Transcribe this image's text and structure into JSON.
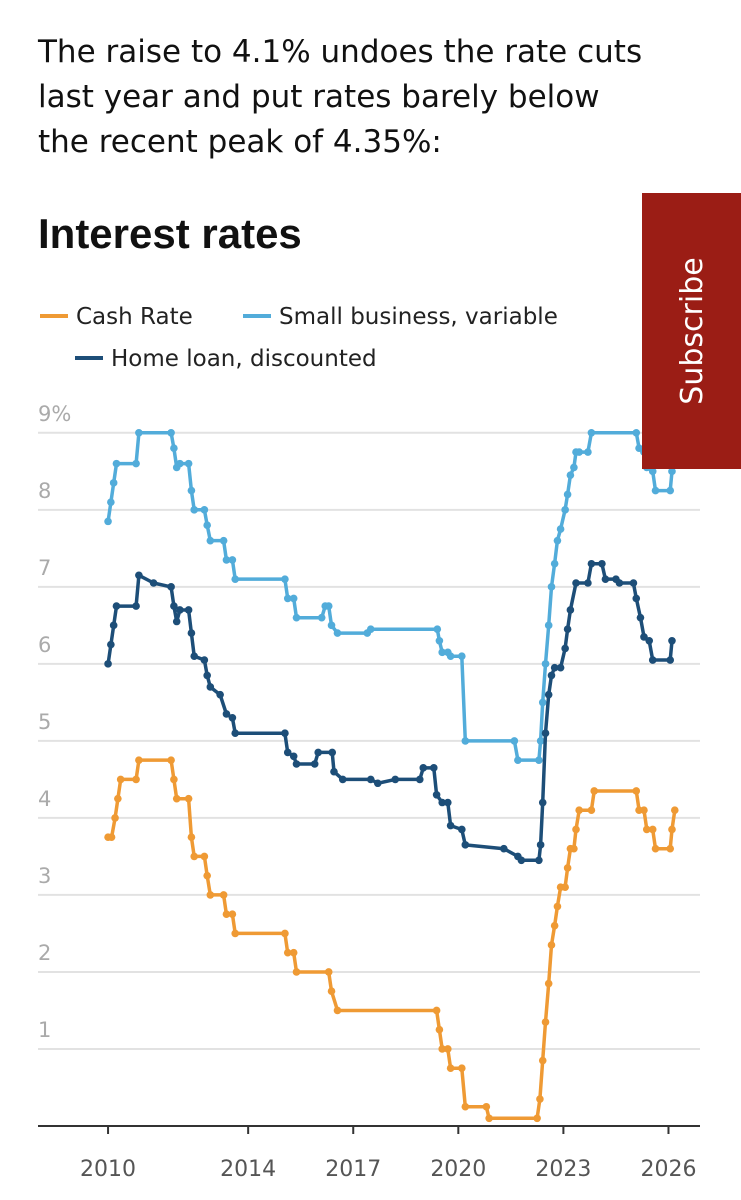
{
  "intro_lines": [
    "The raise to 4.1% undoes the rate cuts",
    "last year and put rates barely below",
    "the recent peak of 4.35%:"
  ],
  "overlay": {
    "button": "Subscribe"
  },
  "chart_data": {
    "type": "line",
    "title": "Interest rates",
    "xlim": [
      2008,
      2026.9
    ],
    "xticks": [
      2010,
      2014,
      2017,
      2020,
      2023,
      2026
    ],
    "ylim": [
      0,
      9.4
    ],
    "yticks": [
      1,
      2,
      3,
      4,
      5,
      6,
      7,
      8,
      {
        "value": 9,
        "label": "9%"
      }
    ],
    "grid": true,
    "series": [
      {
        "name": "Cash Rate",
        "color": "#ef9a34",
        "x": [
          2010.0,
          2010.1,
          2010.2,
          2010.28,
          2010.36,
          2010.8,
          2010.88,
          2011.8,
          2011.88,
          2011.96,
          2012.3,
          2012.38,
          2012.46,
          2012.75,
          2012.83,
          2012.92,
          2013.3,
          2013.38,
          2013.55,
          2013.63,
          2015.05,
          2015.13,
          2015.3,
          2015.38,
          2016.3,
          2016.38,
          2016.55,
          2019.38,
          2019.46,
          2019.54,
          2019.7,
          2019.78,
          2020.1,
          2020.2,
          2020.8,
          2020.88,
          2022.25,
          2022.33,
          2022.41,
          2022.49,
          2022.58,
          2022.66,
          2022.75,
          2022.83,
          2022.92,
          2023.05,
          2023.12,
          2023.2,
          2023.3,
          2023.36,
          2023.45,
          2023.8,
          2023.88,
          2025.08,
          2025.16,
          2025.3,
          2025.38,
          2025.55,
          2025.63,
          2026.05,
          2026.1,
          2026.18
        ],
        "values": [
          3.75,
          3.75,
          4.0,
          4.25,
          4.5,
          4.5,
          4.75,
          4.75,
          4.5,
          4.25,
          4.25,
          3.75,
          3.5,
          3.5,
          3.25,
          3.0,
          3.0,
          2.75,
          2.75,
          2.5,
          2.5,
          2.25,
          2.25,
          2.0,
          2.0,
          1.75,
          1.5,
          1.5,
          1.25,
          1.0,
          1.0,
          0.75,
          0.75,
          0.25,
          0.25,
          0.1,
          0.1,
          0.35,
          0.85,
          1.35,
          1.85,
          2.35,
          2.6,
          2.85,
          3.1,
          3.1,
          3.35,
          3.6,
          3.6,
          3.85,
          4.1,
          4.1,
          4.35,
          4.35,
          4.1,
          4.1,
          3.85,
          3.85,
          3.6,
          3.6,
          3.85,
          4.1
        ]
      },
      {
        "name": "Small business, variable",
        "color": "#52acda",
        "x": [
          2010.0,
          2010.08,
          2010.16,
          2010.24,
          2010.8,
          2010.88,
          2011.8,
          2011.88,
          2011.96,
          2012.05,
          2012.3,
          2012.38,
          2012.46,
          2012.75,
          2012.83,
          2012.92,
          2013.3,
          2013.38,
          2013.55,
          2013.63,
          2015.05,
          2015.13,
          2015.3,
          2015.38,
          2016.1,
          2016.2,
          2016.3,
          2016.38,
          2016.55,
          2017.4,
          2017.5,
          2019.4,
          2019.46,
          2019.54,
          2019.7,
          2019.78,
          2020.1,
          2020.2,
          2021.6,
          2021.7,
          2022.3,
          2022.35,
          2022.41,
          2022.49,
          2022.58,
          2022.66,
          2022.75,
          2022.83,
          2022.92,
          2023.05,
          2023.12,
          2023.2,
          2023.3,
          2023.36,
          2023.45,
          2023.7,
          2023.8,
          2025.08,
          2025.16,
          2025.3,
          2025.38,
          2025.55,
          2025.63,
          2026.05,
          2026.1
        ],
        "values": [
          7.85,
          8.1,
          8.35,
          8.6,
          8.6,
          9.0,
          9.0,
          8.8,
          8.55,
          8.6,
          8.6,
          8.25,
          8.0,
          8.0,
          7.8,
          7.6,
          7.6,
          7.35,
          7.35,
          7.1,
          7.1,
          6.85,
          6.85,
          6.6,
          6.6,
          6.75,
          6.75,
          6.5,
          6.4,
          6.4,
          6.45,
          6.45,
          6.3,
          6.15,
          6.15,
          6.1,
          6.1,
          5.0,
          5.0,
          4.75,
          4.75,
          5.0,
          5.5,
          6.0,
          6.5,
          7.0,
          7.3,
          7.6,
          7.75,
          8.0,
          8.2,
          8.45,
          8.55,
          8.75,
          8.75,
          8.75,
          9.0,
          9.0,
          8.8,
          8.75,
          8.55,
          8.5,
          8.25,
          8.25,
          8.5
        ]
      },
      {
        "name": "Home loan, discounted",
        "color": "#1d4e78",
        "x": [
          2010.0,
          2010.08,
          2010.16,
          2010.24,
          2010.8,
          2010.88,
          2011.3,
          2011.8,
          2011.88,
          2011.96,
          2012.05,
          2012.3,
          2012.38,
          2012.46,
          2012.75,
          2012.83,
          2012.92,
          2013.2,
          2013.38,
          2013.55,
          2013.63,
          2015.05,
          2015.13,
          2015.3,
          2015.38,
          2015.9,
          2016.0,
          2016.4,
          2016.45,
          2016.7,
          2017.5,
          2017.7,
          2018.2,
          2018.9,
          2019.0,
          2019.3,
          2019.38,
          2019.54,
          2019.7,
          2019.78,
          2020.1,
          2020.2,
          2021.3,
          2021.7,
          2021.8,
          2022.3,
          2022.35,
          2022.41,
          2022.49,
          2022.58,
          2022.66,
          2022.75,
          2022.92,
          2023.05,
          2023.12,
          2023.2,
          2023.36,
          2023.7,
          2023.8,
          2024.1,
          2024.2,
          2024.5,
          2024.6,
          2025.0,
          2025.08,
          2025.2,
          2025.3,
          2025.45,
          2025.55,
          2026.05,
          2026.1
        ],
        "values": [
          6.0,
          6.25,
          6.5,
          6.75,
          6.75,
          7.15,
          7.05,
          7.0,
          6.75,
          6.55,
          6.7,
          6.7,
          6.4,
          6.1,
          6.05,
          5.85,
          5.7,
          5.6,
          5.35,
          5.3,
          5.1,
          5.1,
          4.85,
          4.8,
          4.7,
          4.7,
          4.85,
          4.85,
          4.6,
          4.5,
          4.5,
          4.45,
          4.5,
          4.5,
          4.65,
          4.65,
          4.3,
          4.2,
          4.2,
          3.9,
          3.85,
          3.65,
          3.6,
          3.5,
          3.45,
          3.45,
          3.65,
          4.2,
          5.1,
          5.6,
          5.85,
          5.95,
          5.95,
          6.2,
          6.45,
          6.7,
          7.05,
          7.05,
          7.3,
          7.3,
          7.1,
          7.1,
          7.05,
          7.05,
          6.85,
          6.6,
          6.35,
          6.3,
          6.05,
          6.05,
          6.3
        ]
      }
    ]
  }
}
